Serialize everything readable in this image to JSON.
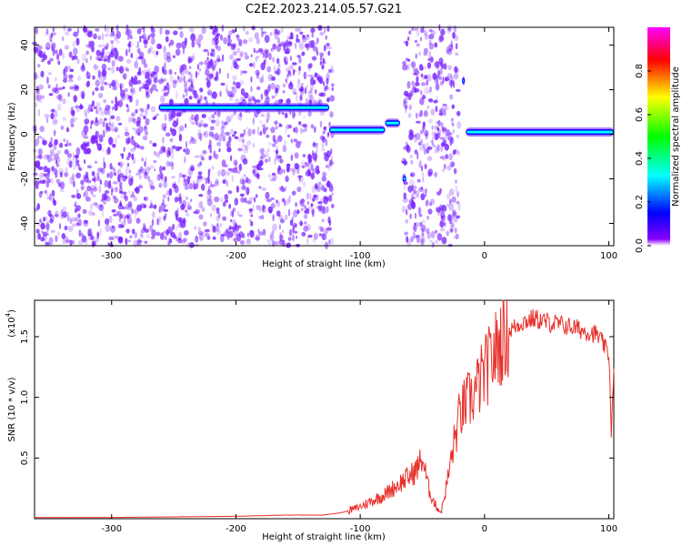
{
  "title": "C2E2.2023.214.05.57.G21",
  "colors": {
    "snr_line": "#e8302a",
    "scatter": "#7a22ff",
    "colorbar": [
      "#ff00ff",
      "#ff0000",
      "#ffff00",
      "#00ff00",
      "#00ffff",
      "#0000ff",
      "#8800ff",
      "#ffffff"
    ]
  },
  "chart_data": [
    {
      "type": "heatmap",
      "xlabel": "Height of straight line (km)",
      "ylabel": "Frequency (Hz)",
      "xlim": [
        -362,
        104
      ],
      "ylim": [
        -50,
        48
      ],
      "xticks": [
        -300,
        -200,
        -100,
        0,
        100
      ],
      "yticks": [
        -40,
        -20,
        0,
        20,
        40
      ],
      "colorbar": {
        "label": "Normalized spectral amplitude",
        "range": [
          0,
          1
        ],
        "ticks": [
          "0.0",
          "0.2",
          "0.4",
          "0.6",
          "0.8"
        ]
      },
      "traces": [
        {
          "x_start": -262,
          "x_end": -125,
          "frequency": 12
        },
        {
          "x_start": -125,
          "x_end": -80,
          "frequency": 2
        },
        {
          "x_start": -80,
          "x_end": -68,
          "frequency": 5
        },
        {
          "x_start": -66,
          "x_end": -63,
          "frequency": -20
        },
        {
          "x_start": -18,
          "x_end": -17,
          "frequency": 24
        },
        {
          "x_start": -15,
          "x_end": 104,
          "frequency": 1
        }
      ],
      "noise_regions": [
        [
          -362,
          -122
        ],
        [
          -65,
          -20
        ]
      ]
    },
    {
      "type": "line",
      "xlabel": "Height of straight line (km)",
      "ylabel": "SNR (10 * v/v)",
      "yunit": "(x10",
      "yunit_exp": "4",
      "yunit_close": ")",
      "xlim": [
        -362,
        104
      ],
      "ylim": [
        0,
        1.8
      ],
      "xticks": [
        -300,
        -200,
        -100,
        0,
        100
      ],
      "yticks": [
        0.5,
        1.0,
        1.5
      ],
      "ytick_labels": [
        "0.5",
        "1.0",
        "1.5"
      ],
      "series": [
        {
          "x": [
            -362,
            -300,
            -250,
            -200,
            -160,
            -130,
            -115,
            -105,
            -100,
            -90,
            -80,
            -70,
            -60,
            -55,
            -50,
            -45,
            -40,
            -35,
            -30,
            -25,
            -20,
            -15,
            -10,
            -5,
            0,
            5,
            10,
            15,
            20,
            30,
            40,
            50,
            60,
            70,
            80,
            90,
            95,
            100,
            101,
            102,
            104
          ],
          "y": [
            0.01,
            0.01,
            0.015,
            0.02,
            0.03,
            0.03,
            0.05,
            0.08,
            0.1,
            0.15,
            0.2,
            0.28,
            0.35,
            0.4,
            0.5,
            0.25,
            0.12,
            0.05,
            0.3,
            0.6,
            0.85,
            0.95,
            1.0,
            1.1,
            1.2,
            1.3,
            1.4,
            1.5,
            1.55,
            1.62,
            1.65,
            1.62,
            1.6,
            1.58,
            1.55,
            1.52,
            1.45,
            1.35,
            1.1,
            0.7,
            1.2
          ]
        }
      ]
    }
  ]
}
